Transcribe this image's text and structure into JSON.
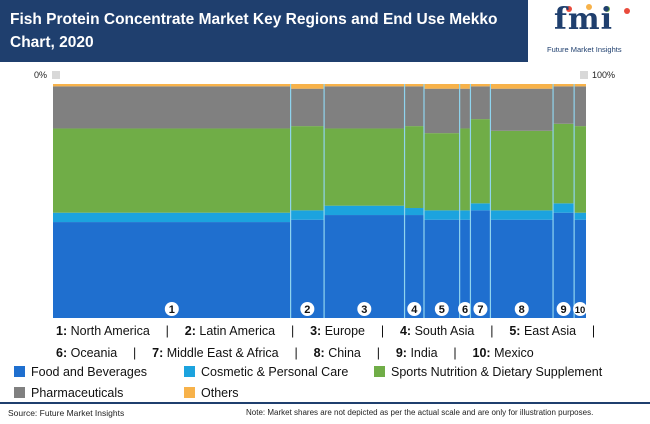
{
  "header": {
    "title": "Fish Protein Concentrate Market Key Regions and End Use Mekko Chart, 2020",
    "logo_text": "fmi",
    "logo_subtext": "Future Market Insights"
  },
  "axis": {
    "left_label": "0%",
    "right_label": "100%"
  },
  "colors": {
    "Food and Beverages": "#1f6fcf",
    "Cosmetic & Personal Care": "#1ca3de",
    "Sports Nutrition & Dietary Supplement": "#70ad47",
    "Pharmaceuticals": "#808080",
    "Others": "#f7b24a",
    "header": "#1f3f6e"
  },
  "chart_data": {
    "type": "mekko",
    "title": "Fish Protein Concentrate Market Key Regions and End Use Mekko Chart, 2020",
    "x_range": [
      0,
      100
    ],
    "y_range": [
      0,
      100
    ],
    "region_labels": [
      "1",
      "2",
      "3",
      "4",
      "5",
      "6",
      "7",
      "8",
      "9",
      "10"
    ],
    "regions": [
      "North America",
      "Latin America",
      "Europe",
      "South Asia",
      "East Asia",
      "Oceania",
      "Middle East & Africa",
      "China",
      "India",
      "Mexico"
    ],
    "widths": [
      44.0,
      6.2,
      14.9,
      3.6,
      6.6,
      2.0,
      3.7,
      11.6,
      3.9,
      2.2
    ],
    "series": [
      {
        "name": "Food and Beverages",
        "values": [
          41,
          42,
          44,
          44,
          42,
          42,
          46,
          42,
          45,
          42
        ]
      },
      {
        "name": "Cosmetic & Personal Care",
        "values": [
          4,
          4,
          4,
          3,
          4,
          4,
          3,
          4,
          4,
          3
        ]
      },
      {
        "name": "Sports Nutrition & Dietary Supplement",
        "values": [
          36,
          36,
          33,
          35,
          33,
          35,
          36,
          34,
          34,
          37
        ]
      },
      {
        "name": "Pharmaceuticals",
        "values": [
          18,
          16,
          18,
          17,
          19,
          17,
          14,
          18,
          16,
          17
        ]
      },
      {
        "name": "Others",
        "values": [
          1,
          2,
          1,
          1,
          2,
          2,
          1,
          2,
          1,
          1
        ]
      }
    ]
  },
  "legend": {
    "row1": [
      {
        "num": "1:",
        "name": "North America"
      },
      {
        "num": "2:",
        "name": "Latin America"
      },
      {
        "num": "3:",
        "name": "Europe"
      },
      {
        "num": "4:",
        "name": "South Asia"
      },
      {
        "num": "5:",
        "name": "East Asia"
      }
    ],
    "row2": [
      {
        "num": "6:",
        "name": "Oceania"
      },
      {
        "num": "7:",
        "name": "Middle East & Africa"
      },
      {
        "num": "8:",
        "name": "China"
      },
      {
        "num": "9:",
        "name": "India"
      },
      {
        "num": "10:",
        "name": "Mexico"
      }
    ],
    "separator": "|",
    "series": [
      "Food and Beverages",
      "Cosmetic & Personal Care",
      "Sports Nutrition & Dietary Supplement",
      "Pharmaceuticals",
      "Others"
    ]
  },
  "footer": {
    "source": "Source: Future Market Insights",
    "note": "Note: Market shares are not depicted as per the actual scale and are only for illustration purposes."
  }
}
